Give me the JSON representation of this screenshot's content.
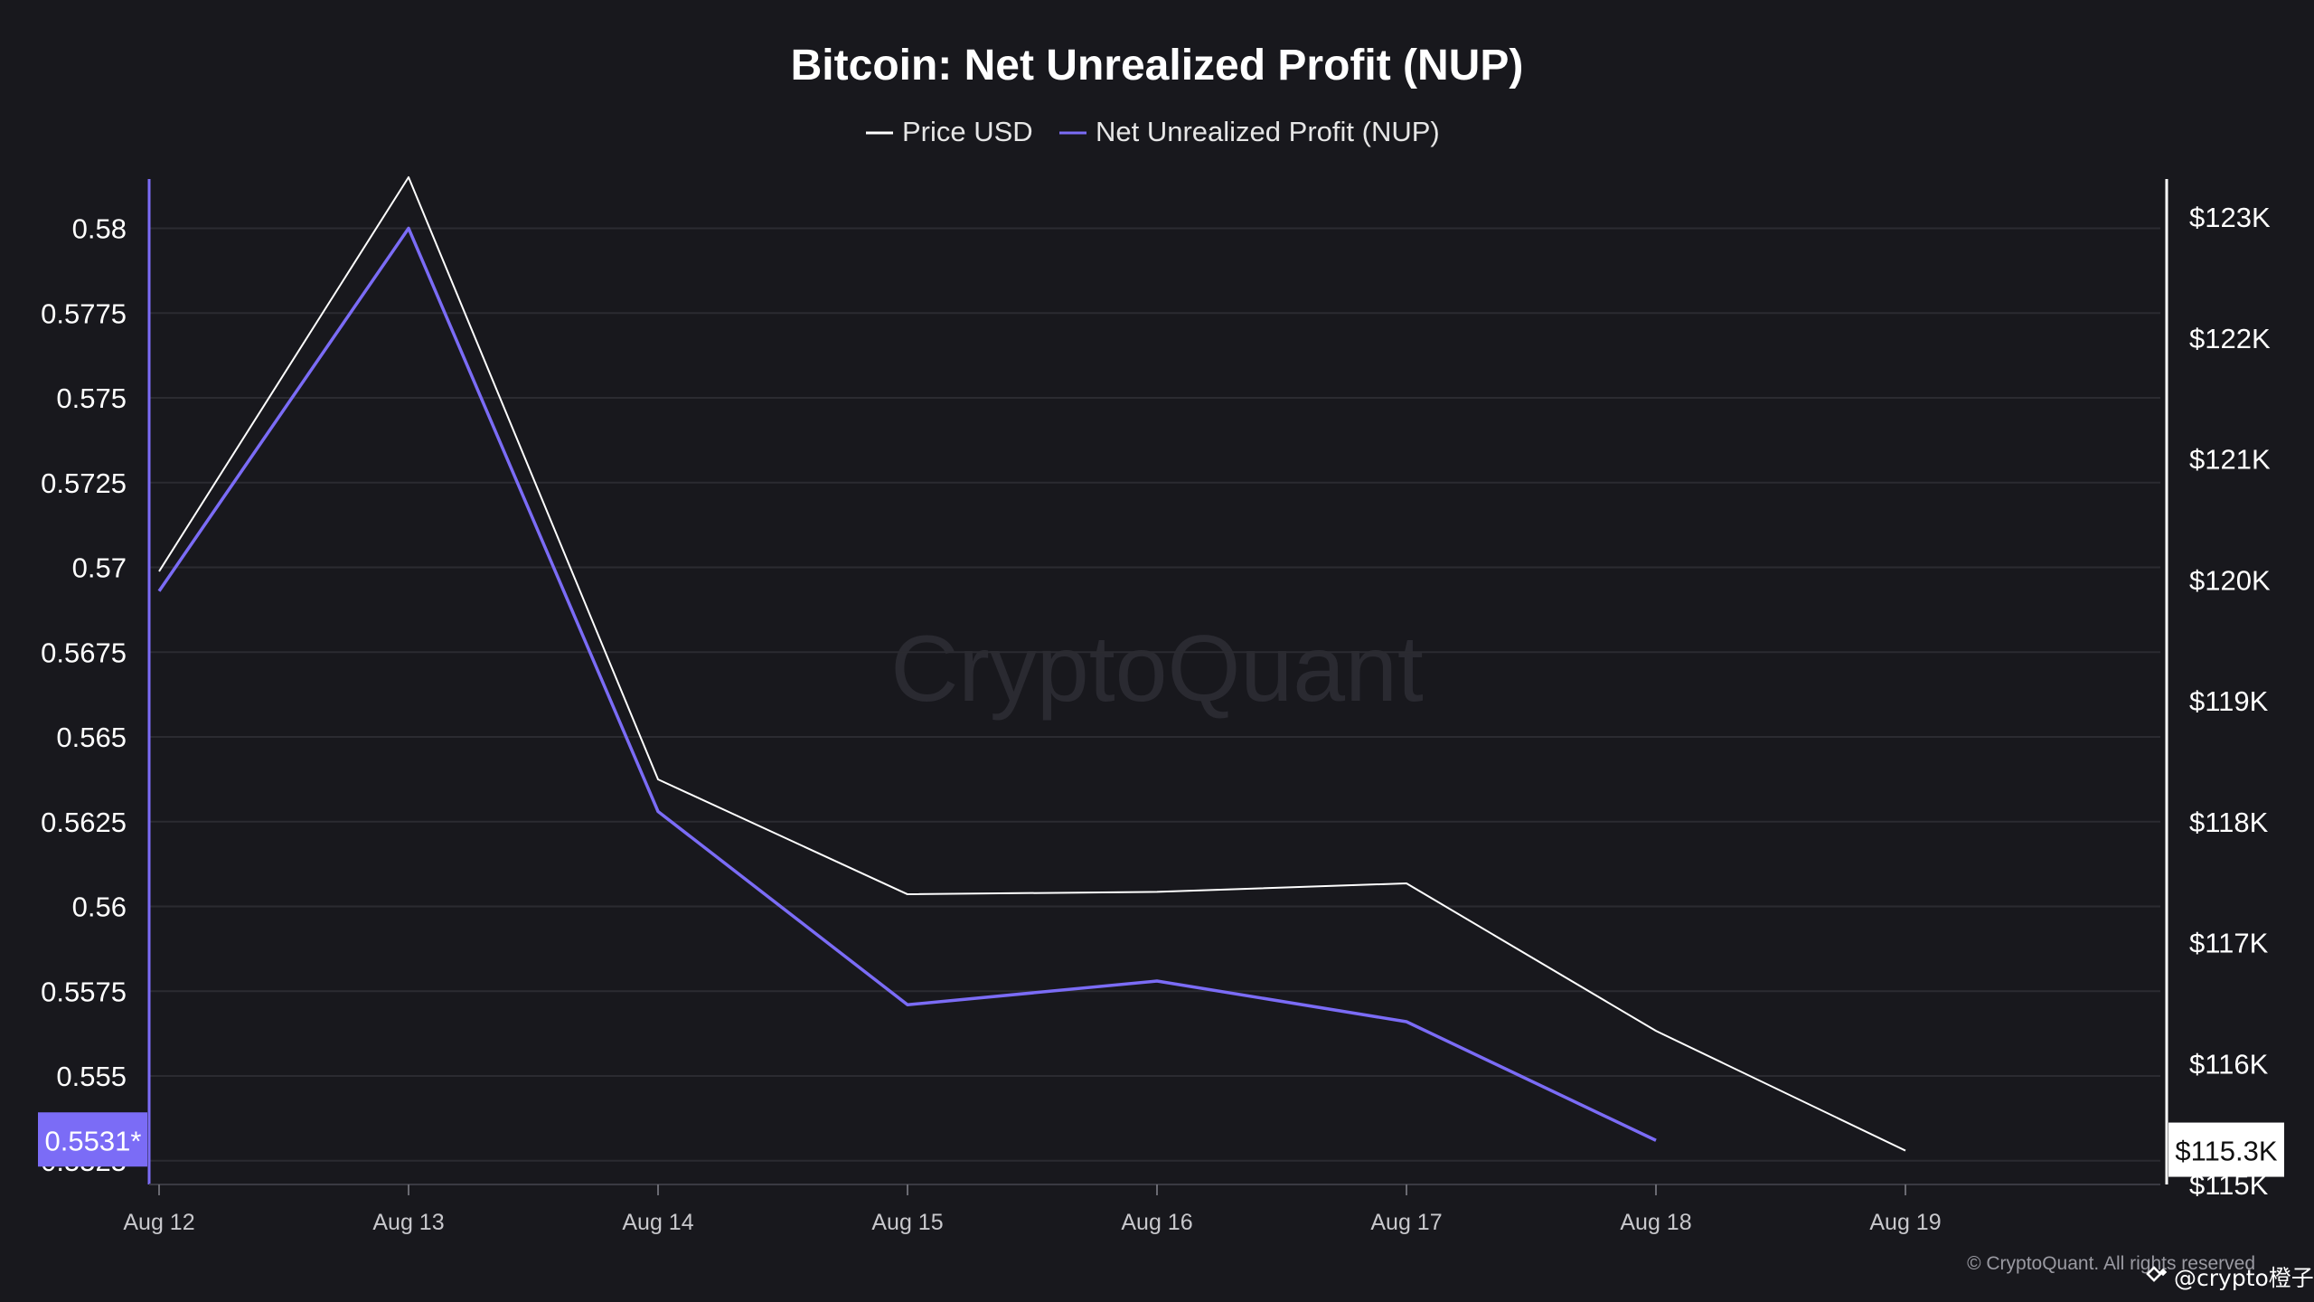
{
  "chart_data": {
    "type": "line",
    "title": "Bitcoin: Net Unrealized Profit (NUP)",
    "legend": {
      "placement": "top-center"
    },
    "grid": true,
    "x": [
      "Aug 12",
      "Aug 13",
      "Aug 14",
      "Aug 15",
      "Aug 16",
      "Aug 17",
      "Aug 18",
      "Aug 19"
    ],
    "series": [
      {
        "name": "Price USD",
        "axis": "right",
        "color": "#ffffff",
        "values": [
          120070,
          123330,
          118350,
          117400,
          117420,
          117490,
          116270,
          115280
        ]
      },
      {
        "name": "Net Unrealized Profit (NUP)",
        "axis": "left",
        "color": "#7b6cf6",
        "values": [
          0.5693,
          0.58,
          0.5628,
          0.5571,
          0.5578,
          0.5566,
          0.5531,
          null
        ]
      }
    ],
    "y_left": {
      "ticks": [
        0.58,
        0.5775,
        0.575,
        0.5725,
        0.57,
        0.5675,
        0.565,
        0.5625,
        0.56,
        0.5575,
        0.555,
        0.5525
      ],
      "tick_labels": [
        "0.58",
        "0.5775",
        "0.575",
        "0.5725",
        "0.57",
        "0.5675",
        "0.565",
        "0.5625",
        "0.56",
        "0.5575",
        "0.555",
        "0.5525"
      ],
      "range": [
        0.5518,
        0.5814
      ],
      "current_label": "0.5531*",
      "current_value": 0.5531
    },
    "y_right": {
      "ticks": [
        123000,
        122000,
        121000,
        120000,
        119000,
        118000,
        117000,
        116000,
        115000
      ],
      "tick_labels": [
        "$123K",
        "$122K",
        "$121K",
        "$120K",
        "$119K",
        "$118K",
        "$117K",
        "$116K",
        "$115K"
      ],
      "range": [
        115000,
        123300
      ],
      "current_label": "$115.3K",
      "current_value": 115280
    },
    "watermark": "CryptoQuant",
    "copyright": "© CryptoQuant. All rights reserved",
    "user_tag": "@crypto橙子"
  },
  "colors": {
    "background": "#18181d",
    "grid": "#2b2b31",
    "price": "#ffffff",
    "nup": "#7b6cf6"
  }
}
